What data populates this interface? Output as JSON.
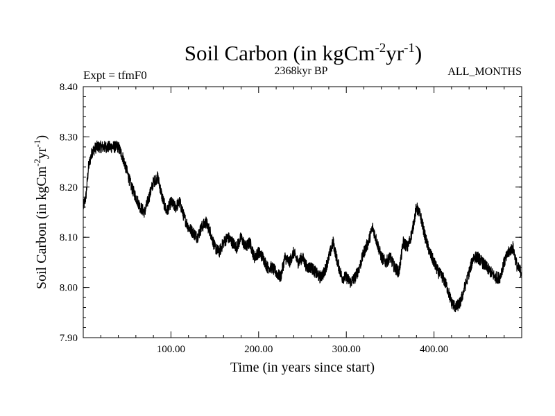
{
  "chart_data": {
    "type": "line",
    "title": {
      "prefix": "Soil Carbon (in kgCm",
      "sup1": "-2",
      "mid": "yr",
      "sup2": "-1",
      "suffix": ")"
    },
    "subtitle_left": "Expt = tfmF0",
    "subtitle_center": "2368kyr BP",
    "subtitle_right": "ALL_MONTHS",
    "xlabel": "Time (in years since start)",
    "ylabel": {
      "prefix": "Soil Carbon (in kgCm",
      "sup1": "-2",
      "mid": "yr",
      "sup2": "-1",
      "suffix": ")"
    },
    "xlim": [
      0,
      500
    ],
    "ylim": [
      7.9,
      8.4
    ],
    "xticks": [
      100,
      200,
      300,
      400
    ],
    "xtick_labels": [
      "100.00",
      "200.00",
      "300.00",
      "400.00"
    ],
    "yticks": [
      7.9,
      8.0,
      8.1,
      8.2,
      8.3,
      8.4
    ],
    "ytick_labels": [
      "7.90",
      "8.00",
      "8.10",
      "8.20",
      "8.30",
      "8.40"
    ],
    "grid": false,
    "series": [
      {
        "name": "Soil Carbon",
        "color": "#000000",
        "noise_amplitude": 0.012,
        "x": [
          0,
          3,
          6,
          10,
          15,
          20,
          25,
          30,
          35,
          40,
          45,
          50,
          55,
          60,
          65,
          70,
          75,
          80,
          85,
          90,
          95,
          100,
          105,
          110,
          115,
          120,
          125,
          130,
          135,
          140,
          145,
          150,
          155,
          160,
          165,
          170,
          175,
          180,
          185,
          190,
          195,
          200,
          205,
          210,
          215,
          220,
          225,
          230,
          235,
          240,
          245,
          250,
          255,
          260,
          265,
          270,
          275,
          280,
          285,
          290,
          295,
          300,
          305,
          310,
          315,
          320,
          325,
          330,
          335,
          340,
          345,
          350,
          355,
          360,
          365,
          370,
          375,
          380,
          385,
          390,
          395,
          400,
          405,
          410,
          415,
          420,
          425,
          430,
          435,
          440,
          445,
          450,
          455,
          460,
          465,
          470,
          475,
          480,
          485,
          490,
          495,
          500
        ],
        "values": [
          8.16,
          8.18,
          8.24,
          8.27,
          8.28,
          8.28,
          8.28,
          8.28,
          8.28,
          8.28,
          8.26,
          8.23,
          8.2,
          8.18,
          8.16,
          8.15,
          8.18,
          8.21,
          8.22,
          8.18,
          8.15,
          8.17,
          8.16,
          8.17,
          8.14,
          8.12,
          8.11,
          8.1,
          8.12,
          8.13,
          8.11,
          8.08,
          8.07,
          8.09,
          8.1,
          8.09,
          8.08,
          8.1,
          8.08,
          8.09,
          8.06,
          8.07,
          8.06,
          8.04,
          8.04,
          8.03,
          8.02,
          8.06,
          8.05,
          8.07,
          8.05,
          8.06,
          8.04,
          8.04,
          8.03,
          8.02,
          8.03,
          8.06,
          8.09,
          8.05,
          8.02,
          8.02,
          8.01,
          8.02,
          8.04,
          8.07,
          8.09,
          8.12,
          8.09,
          8.06,
          8.05,
          8.06,
          8.04,
          8.03,
          8.09,
          8.08,
          8.11,
          8.16,
          8.14,
          8.1,
          8.07,
          8.05,
          8.03,
          8.02,
          8.0,
          7.97,
          7.96,
          7.97,
          8.0,
          8.03,
          8.06,
          8.06,
          8.05,
          8.04,
          8.03,
          8.02,
          8.02,
          8.05,
          8.07,
          8.08,
          8.04,
          8.03
        ]
      }
    ]
  }
}
